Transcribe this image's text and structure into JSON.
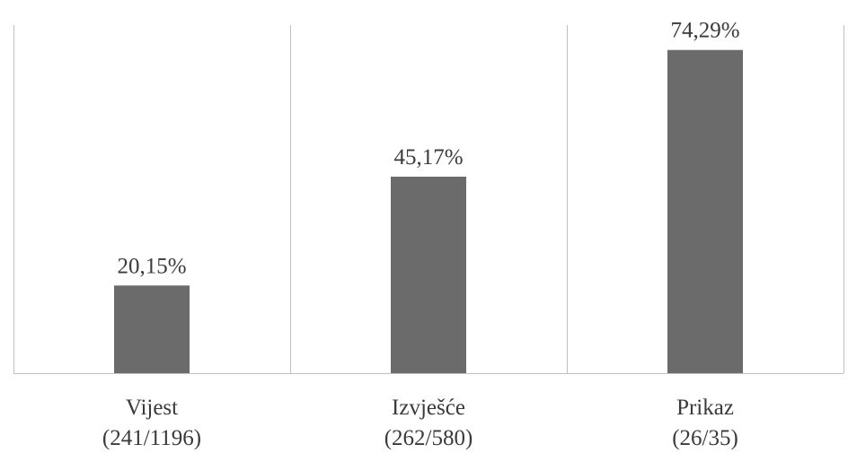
{
  "chart_data": {
    "type": "bar",
    "categories": [
      "Vijest",
      "Izvješće",
      "Prikaz"
    ],
    "category_counts": [
      "(241/1196)",
      "(262/580)",
      "(26/35)"
    ],
    "values": [
      20.15,
      45.17,
      74.29
    ],
    "value_labels": [
      "20,15%",
      "45,17%",
      "74,29%"
    ],
    "title": "",
    "xlabel": "",
    "ylabel": "",
    "ylim": [
      0,
      80
    ],
    "grid": "vertical category separators",
    "legend": "none",
    "bar_color": "#6b6b6b",
    "axis_color": "#c0c0c0",
    "text_color": "#3a3a3a"
  }
}
